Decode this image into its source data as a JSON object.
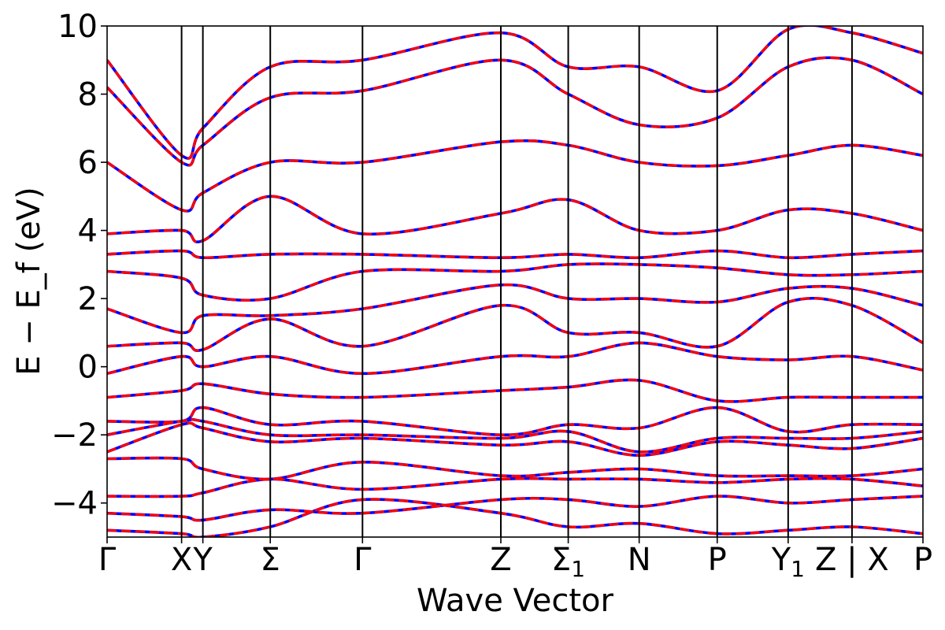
{
  "chart_data": {
    "type": "line",
    "xlabel": "Wave Vector",
    "ylabel": "E − E_f (eV)",
    "ylim": [
      -5,
      10
    ],
    "yticks": [
      "−4",
      "−2",
      "0",
      "2",
      "4",
      "6",
      "8",
      "10"
    ],
    "ytick_values": [
      -4,
      -2,
      0,
      2,
      4,
      6,
      8,
      10
    ],
    "xlim": [
      0,
      11.5
    ],
    "kpoint_positions": [
      0,
      1.05,
      1.35,
      2.3,
      3.6,
      5.55,
      6.5,
      7.5,
      8.6,
      9.6,
      10.5,
      11.5
    ],
    "kpoint_labels": [
      "Γ",
      "X",
      "Y",
      "Σ",
      "Γ",
      "Z",
      "Σ1",
      "N",
      "P",
      "Y1",
      "Z | X",
      "P"
    ],
    "grid": false,
    "series": [
      {
        "color": "#0000ff",
        "style": "solid",
        "x": [
          0,
          1.05,
          1.35,
          2.3,
          3.6,
          5.55,
          6.5,
          7.5,
          8.6,
          9.6,
          10.5,
          11.5
        ],
        "values": [
          -4.8,
          -4.9,
          -5.0,
          -4.7,
          -3.9,
          -4.3,
          -4.7,
          -4.6,
          -4.9,
          -4.8,
          -4.7,
          -4.9
        ]
      },
      {
        "color": "#0000ff",
        "style": "solid",
        "x": [
          0,
          1.05,
          1.35,
          2.3,
          3.6,
          5.55,
          6.5,
          7.5,
          8.6,
          9.6,
          10.5,
          11.5
        ],
        "values": [
          -4.3,
          -4.4,
          -4.5,
          -4.2,
          -4.3,
          -3.9,
          -3.9,
          -4.1,
          -3.8,
          -4.0,
          -3.9,
          -3.8
        ]
      },
      {
        "color": "#0000ff",
        "style": "solid",
        "x": [
          0,
          1.05,
          1.35,
          2.3,
          3.6,
          5.55,
          6.5,
          7.5,
          8.6,
          9.6,
          10.5,
          11.5
        ],
        "values": [
          -3.8,
          -3.8,
          -3.7,
          -3.3,
          -3.6,
          -3.3,
          -3.3,
          -3.3,
          -3.4,
          -3.3,
          -3.3,
          -3.5
        ]
      },
      {
        "color": "#0000ff",
        "style": "solid",
        "x": [
          0,
          1.05,
          1.35,
          2.3,
          3.6,
          5.55,
          6.5,
          7.5,
          8.6,
          9.6,
          10.5,
          11.5
        ],
        "values": [
          -2.7,
          -2.7,
          -3.0,
          -3.3,
          -2.8,
          -3.2,
          -3.1,
          -3.0,
          -3.2,
          -3.2,
          -3.2,
          -3.0
        ]
      },
      {
        "color": "#0000ff",
        "style": "solid",
        "x": [
          0,
          1.05,
          1.35,
          2.3,
          3.6,
          5.55,
          6.5,
          7.5,
          8.6,
          9.6,
          10.5,
          11.5
        ],
        "values": [
          -2.5,
          -1.7,
          -1.8,
          -2.2,
          -2.1,
          -2.3,
          -2.2,
          -2.6,
          -2.2,
          -2.3,
          -2.4,
          -2.1
        ]
      },
      {
        "color": "#0000ff",
        "style": "solid",
        "x": [
          0,
          1.05,
          1.35,
          2.3,
          3.6,
          5.55,
          6.5,
          7.5,
          8.6,
          9.6,
          10.5,
          11.5
        ],
        "values": [
          -2.0,
          -1.6,
          -1.6,
          -2.0,
          -2.0,
          -2.1,
          -1.9,
          -2.5,
          -2.1,
          -2.1,
          -2.1,
          -1.9
        ]
      },
      {
        "color": "#0000ff",
        "style": "solid",
        "x": [
          0,
          1.05,
          1.35,
          2.3,
          3.6,
          5.55,
          6.5,
          7.5,
          8.6,
          9.6,
          10.5,
          11.5
        ],
        "values": [
          -1.6,
          -1.6,
          -1.2,
          -1.7,
          -1.6,
          -2.0,
          -1.7,
          -1.8,
          -1.2,
          -1.9,
          -1.7,
          -1.7
        ]
      },
      {
        "color": "#0000ff",
        "style": "solid",
        "x": [
          0,
          1.05,
          1.35,
          2.3,
          3.6,
          5.55,
          6.5,
          7.5,
          8.6,
          9.6,
          10.5,
          11.5
        ],
        "values": [
          -0.9,
          -0.7,
          -0.5,
          -0.8,
          -0.9,
          -0.7,
          -0.6,
          -0.4,
          -1.0,
          -0.9,
          -0.9,
          -0.9
        ]
      },
      {
        "color": "#0000ff",
        "style": "solid",
        "x": [
          0,
          1.05,
          1.35,
          2.3,
          3.6,
          5.55,
          6.5,
          7.5,
          8.6,
          9.6,
          10.5,
          11.5
        ],
        "values": [
          -0.2,
          0.3,
          0.0,
          0.3,
          -0.2,
          0.3,
          0.3,
          0.7,
          0.3,
          0.2,
          0.3,
          -0.1
        ]
      },
      {
        "color": "#0000ff",
        "style": "solid",
        "x": [
          0,
          1.05,
          1.35,
          2.3,
          3.6,
          5.55,
          6.5,
          7.5,
          8.6,
          9.6,
          10.5,
          11.5
        ],
        "values": [
          0.6,
          0.7,
          0.5,
          1.4,
          0.6,
          1.8,
          1.0,
          1.0,
          0.6,
          1.9,
          1.8,
          0.7
        ]
      },
      {
        "color": "#0000ff",
        "style": "solid",
        "x": [
          0,
          1.05,
          1.35,
          2.3,
          3.6,
          5.55,
          6.5,
          7.5,
          8.6,
          9.6,
          10.5,
          11.5
        ],
        "values": [
          1.7,
          1.0,
          1.5,
          1.5,
          1.7,
          2.4,
          2.0,
          2.0,
          1.9,
          2.3,
          2.3,
          1.8
        ]
      },
      {
        "color": "#0000ff",
        "style": "solid",
        "x": [
          0,
          1.05,
          1.35,
          2.3,
          3.6,
          5.55,
          6.5,
          7.5,
          8.6,
          9.6,
          10.5,
          11.5
        ],
        "values": [
          2.8,
          2.6,
          2.1,
          2.0,
          2.8,
          2.8,
          3.0,
          3.0,
          2.9,
          2.7,
          2.7,
          2.8
        ]
      },
      {
        "color": "#0000ff",
        "style": "solid",
        "x": [
          0,
          1.05,
          1.35,
          2.3,
          3.6,
          5.55,
          6.5,
          7.5,
          8.6,
          9.6,
          10.5,
          11.5
        ],
        "values": [
          3.3,
          3.4,
          3.2,
          3.3,
          3.3,
          3.2,
          3.3,
          3.2,
          3.4,
          3.2,
          3.3,
          3.4
        ]
      },
      {
        "color": "#0000ff",
        "style": "solid",
        "x": [
          0,
          1.05,
          1.35,
          2.3,
          3.6,
          5.55,
          6.5,
          7.5,
          8.6,
          9.6,
          10.5,
          11.5
        ],
        "values": [
          3.9,
          4.0,
          3.7,
          5.0,
          3.9,
          4.5,
          4.9,
          4.0,
          4.0,
          4.6,
          4.5,
          4.0
        ]
      },
      {
        "color": "#0000ff",
        "style": "solid",
        "x": [
          0,
          1.05,
          1.35,
          2.3,
          3.6,
          5.55,
          6.5,
          7.5,
          8.6,
          9.6,
          10.5,
          11.5
        ],
        "values": [
          6.0,
          4.6,
          5.1,
          6.0,
          6.0,
          6.6,
          6.5,
          6.0,
          5.9,
          6.2,
          6.5,
          6.2
        ]
      },
      {
        "color": "#0000ff",
        "style": "solid",
        "x": [
          0,
          1.05,
          1.35,
          2.3,
          3.6,
          5.55,
          6.5,
          7.5,
          8.6,
          9.6,
          10.5,
          11.5
        ],
        "values": [
          8.2,
          6.0,
          6.5,
          7.9,
          8.1,
          9.0,
          8.0,
          7.1,
          7.3,
          8.8,
          9.0,
          8.0
        ]
      },
      {
        "color": "#0000ff",
        "style": "solid",
        "x": [
          0,
          1.05,
          1.35,
          2.3,
          3.6,
          5.55,
          6.5,
          7.5,
          8.6,
          9.6,
          10.5,
          11.5
        ],
        "values": [
          9.0,
          6.2,
          7.0,
          8.8,
          9.0,
          9.8,
          8.8,
          8.8,
          8.1,
          9.9,
          9.8,
          9.2
        ]
      },
      {
        "color": "#ff0000",
        "style": "dashed",
        "x": [
          0,
          1.05,
          1.35,
          2.3,
          3.6,
          5.55,
          6.5,
          7.5,
          8.6,
          9.6,
          10.5,
          11.5
        ],
        "values": [
          -4.8,
          -4.9,
          -5.0,
          -4.7,
          -3.9,
          -4.3,
          -4.7,
          -4.6,
          -4.9,
          -4.8,
          -4.7,
          -4.9
        ]
      },
      {
        "color": "#ff0000",
        "style": "dashed",
        "x": [
          0,
          1.05,
          1.35,
          2.3,
          3.6,
          5.55,
          6.5,
          7.5,
          8.6,
          9.6,
          10.5,
          11.5
        ],
        "values": [
          -4.3,
          -4.4,
          -4.5,
          -4.2,
          -4.3,
          -3.9,
          -3.9,
          -4.1,
          -3.8,
          -4.0,
          -3.9,
          -3.8
        ]
      },
      {
        "color": "#ff0000",
        "style": "dashed",
        "x": [
          0,
          1.05,
          1.35,
          2.3,
          3.6,
          5.55,
          6.5,
          7.5,
          8.6,
          9.6,
          10.5,
          11.5
        ],
        "values": [
          -3.8,
          -3.8,
          -3.7,
          -3.3,
          -3.6,
          -3.3,
          -3.3,
          -3.3,
          -3.4,
          -3.3,
          -3.3,
          -3.5
        ]
      },
      {
        "color": "#ff0000",
        "style": "dashed",
        "x": [
          0,
          1.05,
          1.35,
          2.3,
          3.6,
          5.55,
          6.5,
          7.5,
          8.6,
          9.6,
          10.5,
          11.5
        ],
        "values": [
          -2.7,
          -2.7,
          -3.0,
          -3.3,
          -2.8,
          -3.2,
          -3.1,
          -3.0,
          -3.2,
          -3.2,
          -3.2,
          -3.0
        ]
      },
      {
        "color": "#ff0000",
        "style": "dashed",
        "x": [
          0,
          1.05,
          1.35,
          2.3,
          3.6,
          5.55,
          6.5,
          7.5,
          8.6,
          9.6,
          10.5,
          11.5
        ],
        "values": [
          -2.5,
          -1.7,
          -1.8,
          -2.2,
          -2.1,
          -2.3,
          -2.2,
          -2.6,
          -2.2,
          -2.3,
          -2.4,
          -2.1
        ]
      },
      {
        "color": "#ff0000",
        "style": "dashed",
        "x": [
          0,
          1.05,
          1.35,
          2.3,
          3.6,
          5.55,
          6.5,
          7.5,
          8.6,
          9.6,
          10.5,
          11.5
        ],
        "values": [
          -2.0,
          -1.6,
          -1.6,
          -2.0,
          -2.0,
          -2.1,
          -1.9,
          -2.5,
          -2.1,
          -2.1,
          -2.1,
          -1.9
        ]
      },
      {
        "color": "#ff0000",
        "style": "dashed",
        "x": [
          0,
          1.05,
          1.35,
          2.3,
          3.6,
          5.55,
          6.5,
          7.5,
          8.6,
          9.6,
          10.5,
          11.5
        ],
        "values": [
          -1.6,
          -1.6,
          -1.2,
          -1.7,
          -1.6,
          -2.0,
          -1.7,
          -1.8,
          -1.2,
          -1.9,
          -1.7,
          -1.7
        ]
      },
      {
        "color": "#ff0000",
        "style": "dashed",
        "x": [
          0,
          1.05,
          1.35,
          2.3,
          3.6,
          5.55,
          6.5,
          7.5,
          8.6,
          9.6,
          10.5,
          11.5
        ],
        "values": [
          -0.9,
          -0.7,
          -0.5,
          -0.8,
          -0.9,
          -0.7,
          -0.6,
          -0.4,
          -1.0,
          -0.9,
          -0.9,
          -0.9
        ]
      },
      {
        "color": "#ff0000",
        "style": "dashed",
        "x": [
          0,
          1.05,
          1.35,
          2.3,
          3.6,
          5.55,
          6.5,
          7.5,
          8.6,
          9.6,
          10.5,
          11.5
        ],
        "values": [
          -0.2,
          0.3,
          0.0,
          0.3,
          -0.2,
          0.3,
          0.3,
          0.7,
          0.3,
          0.2,
          0.3,
          -0.1
        ]
      },
      {
        "color": "#ff0000",
        "style": "dashed",
        "x": [
          0,
          1.05,
          1.35,
          2.3,
          3.6,
          5.55,
          6.5,
          7.5,
          8.6,
          9.6,
          10.5,
          11.5
        ],
        "values": [
          0.6,
          0.7,
          0.5,
          1.4,
          0.6,
          1.8,
          1.0,
          1.0,
          0.6,
          1.9,
          1.8,
          0.7
        ]
      },
      {
        "color": "#ff0000",
        "style": "dashed",
        "x": [
          0,
          1.05,
          1.35,
          2.3,
          3.6,
          5.55,
          6.5,
          7.5,
          8.6,
          9.6,
          10.5,
          11.5
        ],
        "values": [
          1.7,
          1.0,
          1.5,
          1.5,
          1.7,
          2.4,
          2.0,
          2.0,
          1.9,
          2.3,
          2.3,
          1.8
        ]
      },
      {
        "color": "#ff0000",
        "style": "dashed",
        "x": [
          0,
          1.05,
          1.35,
          2.3,
          3.6,
          5.55,
          6.5,
          7.5,
          8.6,
          9.6,
          10.5,
          11.5
        ],
        "values": [
          2.8,
          2.6,
          2.1,
          2.0,
          2.8,
          2.8,
          3.0,
          3.0,
          2.9,
          2.7,
          2.7,
          2.8
        ]
      },
      {
        "color": "#ff0000",
        "style": "dashed",
        "x": [
          0,
          1.05,
          1.35,
          2.3,
          3.6,
          5.55,
          6.5,
          7.5,
          8.6,
          9.6,
          10.5,
          11.5
        ],
        "values": [
          3.3,
          3.4,
          3.2,
          3.3,
          3.3,
          3.2,
          3.3,
          3.2,
          3.4,
          3.2,
          3.3,
          3.4
        ]
      },
      {
        "color": "#ff0000",
        "style": "dashed",
        "x": [
          0,
          1.05,
          1.35,
          2.3,
          3.6,
          5.55,
          6.5,
          7.5,
          8.6,
          9.6,
          10.5,
          11.5
        ],
        "values": [
          3.9,
          4.0,
          3.7,
          5.0,
          3.9,
          4.5,
          4.9,
          4.0,
          4.0,
          4.6,
          4.5,
          4.0
        ]
      },
      {
        "color": "#ff0000",
        "style": "dashed",
        "x": [
          0,
          1.05,
          1.35,
          2.3,
          3.6,
          5.55,
          6.5,
          7.5,
          8.6,
          9.6,
          10.5,
          11.5
        ],
        "values": [
          6.0,
          4.6,
          5.1,
          6.0,
          6.0,
          6.6,
          6.5,
          6.0,
          5.9,
          6.2,
          6.5,
          6.2
        ]
      },
      {
        "color": "#ff0000",
        "style": "dashed",
        "x": [
          0,
          1.05,
          1.35,
          2.3,
          3.6,
          5.55,
          6.5,
          7.5,
          8.6,
          9.6,
          10.5,
          11.5
        ],
        "values": [
          8.2,
          6.0,
          6.5,
          7.9,
          8.1,
          9.0,
          8.0,
          7.1,
          7.3,
          8.8,
          9.0,
          8.0
        ]
      },
      {
        "color": "#ff0000",
        "style": "dashed",
        "x": [
          0,
          1.05,
          1.35,
          2.3,
          3.6,
          5.55,
          6.5,
          7.5,
          8.6,
          9.6,
          10.5,
          11.5
        ],
        "values": [
          9.0,
          6.2,
          7.0,
          8.8,
          9.0,
          9.8,
          8.8,
          8.8,
          8.1,
          9.9,
          9.8,
          9.2
        ]
      }
    ]
  }
}
